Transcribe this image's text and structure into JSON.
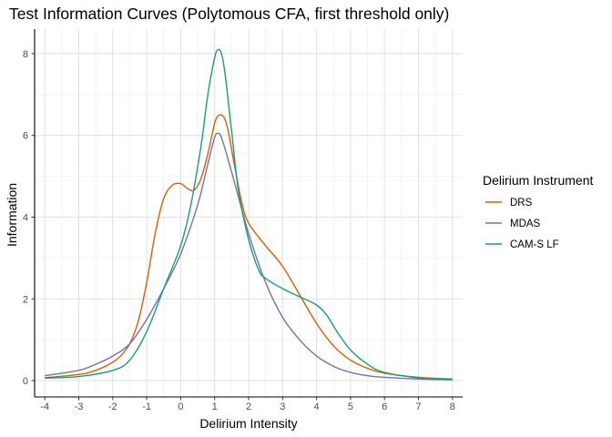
{
  "chart_data": {
    "type": "line",
    "title": "Test Information Curves (Polytomous CFA, first threshold only)",
    "xlabel": "Delirium Intensity",
    "ylabel": "Information",
    "xlim": [
      -4.3,
      8.3
    ],
    "ylim": [
      -0.4,
      8.6
    ],
    "x_ticks": [
      -4,
      -3,
      -2,
      -1,
      0,
      1,
      2,
      3,
      4,
      5,
      6,
      7,
      8
    ],
    "y_ticks": [
      0,
      2,
      4,
      6,
      8
    ],
    "grid": true,
    "legend_title": "Delirium Instrument",
    "legend_position": "right",
    "series": [
      {
        "name": "DRS",
        "color": "#D95F02",
        "x": [
          -4,
          -3,
          -2.5,
          -2,
          -1.75,
          -1.5,
          -1.25,
          -1,
          -0.75,
          -0.5,
          -0.25,
          0,
          0.2,
          0.4,
          0.6,
          0.8,
          1,
          1.1,
          1.2,
          1.3,
          1.4,
          1.6,
          1.8,
          2,
          2.5,
          3,
          3.5,
          4,
          4.5,
          5,
          5.5,
          6,
          7,
          8
        ],
        "y": [
          0.07,
          0.15,
          0.25,
          0.45,
          0.62,
          0.9,
          1.45,
          2.4,
          3.6,
          4.45,
          4.78,
          4.82,
          4.7,
          4.66,
          4.95,
          5.55,
          6.3,
          6.48,
          6.5,
          6.4,
          6.1,
          5.2,
          4.35,
          3.85,
          3.3,
          2.8,
          2.1,
          1.4,
          0.85,
          0.5,
          0.3,
          0.18,
          0.08,
          0.04
        ]
      },
      {
        "name": "MDAS",
        "color": "#7570B3",
        "x": [
          -4,
          -3,
          -2.5,
          -2,
          -1.5,
          -1,
          -0.5,
          0,
          0.5,
          0.8,
          1,
          1.1,
          1.2,
          1.4,
          1.6,
          2,
          2.5,
          3,
          3.5,
          4,
          4.5,
          5,
          5.5,
          6,
          7,
          8
        ],
        "y": [
          0.12,
          0.25,
          0.4,
          0.6,
          0.9,
          1.5,
          2.25,
          3.1,
          4.3,
          5.3,
          5.95,
          6.05,
          5.95,
          5.4,
          4.8,
          3.6,
          2.4,
          1.55,
          1.0,
          0.6,
          0.35,
          0.2,
          0.12,
          0.08,
          0.04,
          0.02
        ]
      },
      {
        "name": "CAM-S LF",
        "color": "#1B9E77",
        "x": [
          -4,
          -3,
          -2,
          -1.5,
          -1,
          -0.5,
          0,
          0.3,
          0.6,
          0.8,
          1,
          1.1,
          1.2,
          1.3,
          1.5,
          1.7,
          2,
          2.3,
          2.5,
          3,
          3.5,
          4,
          4.3,
          4.6,
          5,
          5.5,
          6,
          7,
          8
        ],
        "y": [
          0.06,
          0.1,
          0.25,
          0.5,
          1.2,
          2.25,
          3.3,
          4.3,
          5.75,
          7.0,
          7.9,
          8.1,
          8.0,
          7.55,
          6.1,
          4.65,
          3.45,
          2.7,
          2.5,
          2.25,
          2.05,
          1.85,
          1.6,
          1.2,
          0.75,
          0.4,
          0.2,
          0.07,
          0.03
        ]
      }
    ]
  }
}
